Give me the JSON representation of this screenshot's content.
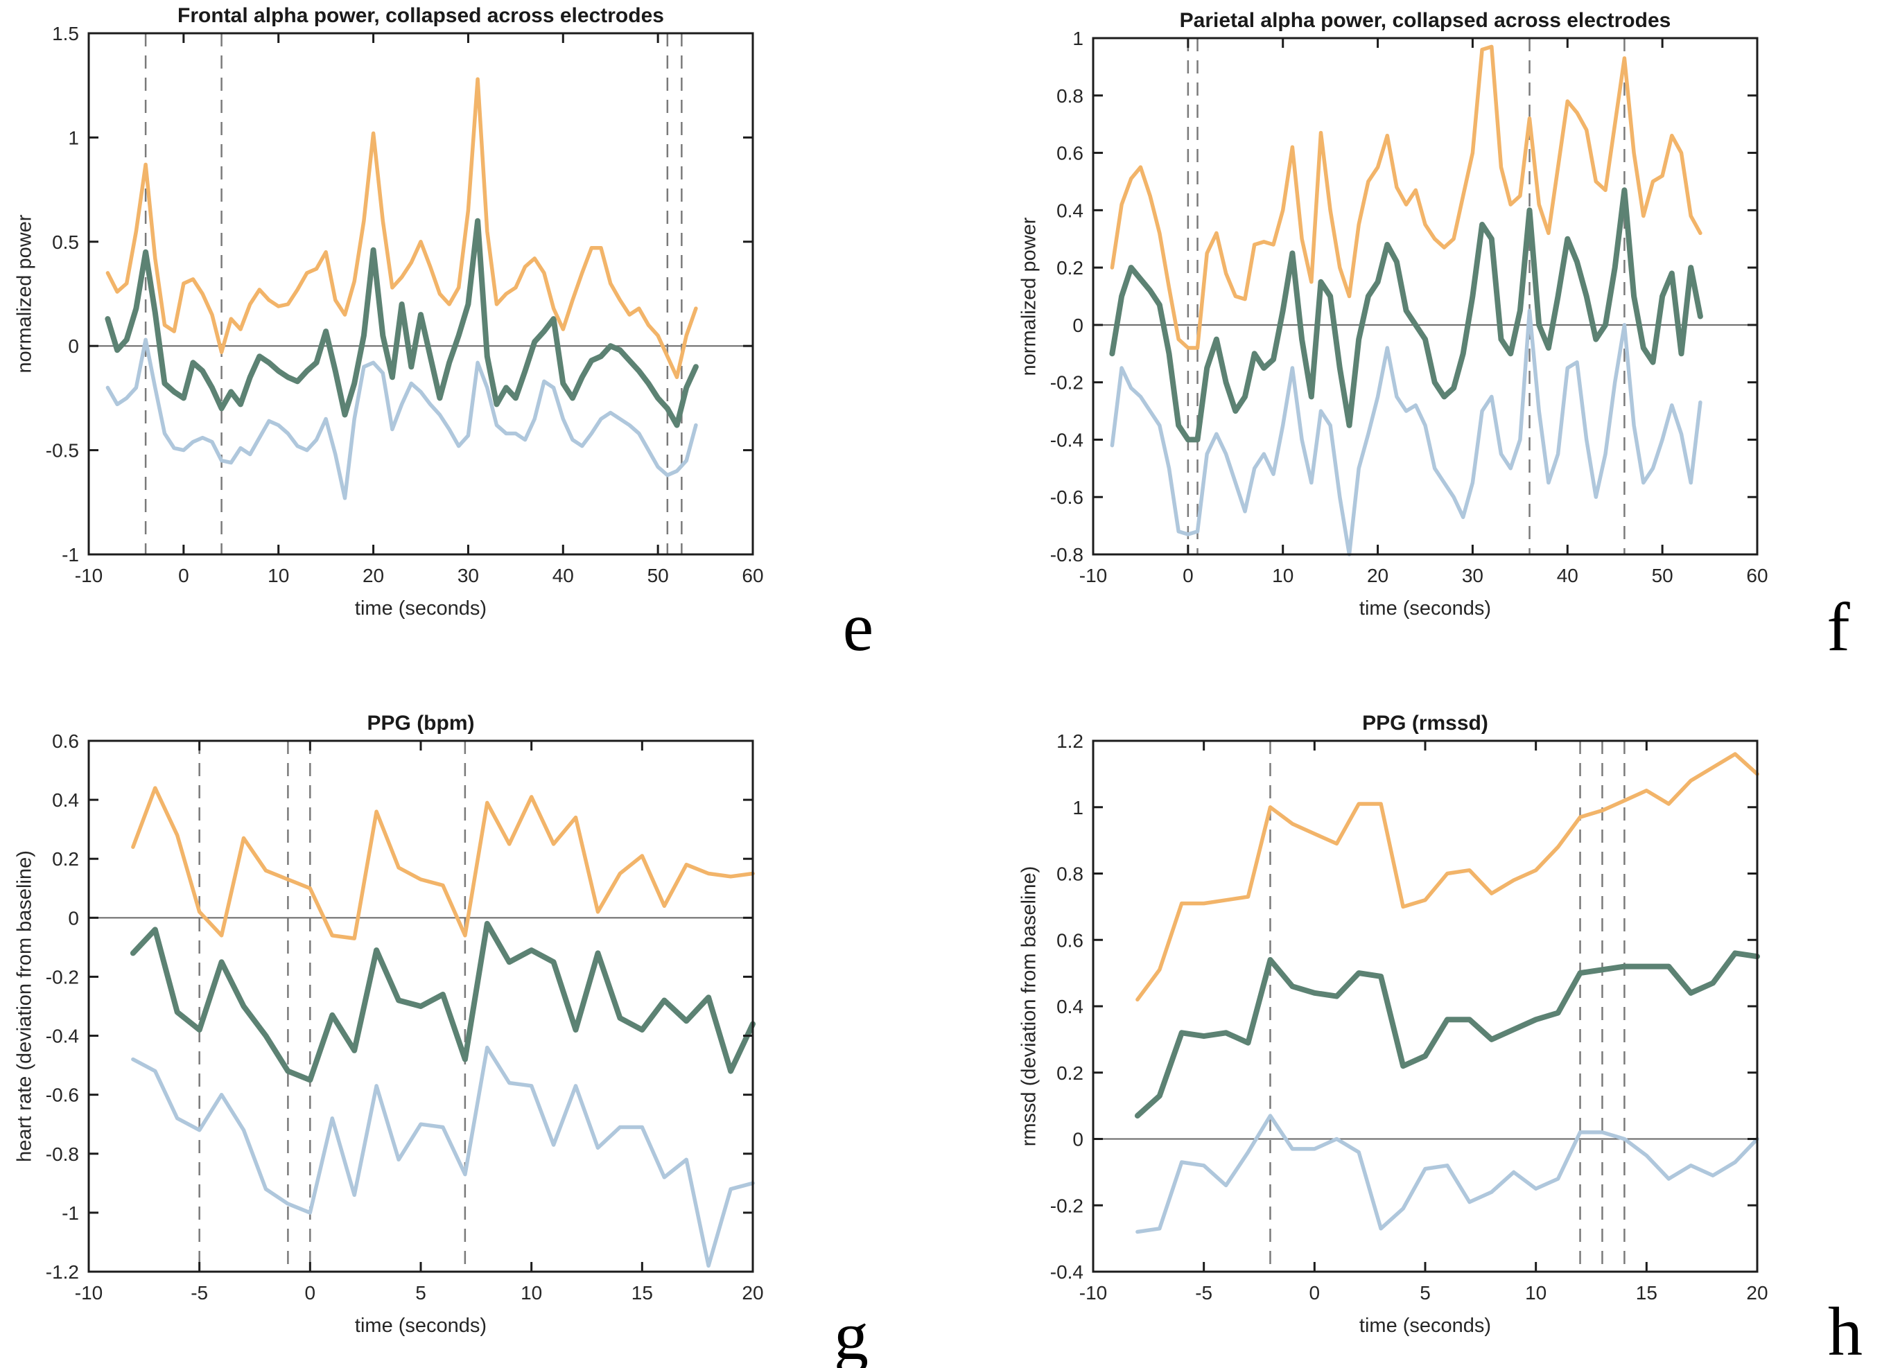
{
  "colors": {
    "orange": "#F2B469",
    "green": "#5C8273",
    "blue": "#AFC7DC",
    "dashed_line": "#7a7a7a",
    "zero_line": "#666666",
    "axis": "#1c1c1c",
    "text": "#262626"
  },
  "chart_data": [
    {
      "type": "line",
      "panel_letter": "e",
      "title": "Frontal alpha power, collapsed across electrodes",
      "xlabel": "time (seconds)",
      "ylabel": "normalized power",
      "xlim": [
        -10,
        60
      ],
      "ylim": [
        -1,
        1.5
      ],
      "xticks": [
        -10,
        0,
        10,
        20,
        30,
        40,
        50,
        60
      ],
      "xtick_labels": [
        "-10",
        "0",
        "10",
        "20",
        "30",
        "40",
        "50",
        "60"
      ],
      "yticks": [
        -1,
        -0.5,
        0,
        0.5,
        1,
        1.5
      ],
      "ytick_labels": [
        "-1",
        "-0.5",
        "0",
        "0.5",
        "1",
        "1.5"
      ],
      "dashed_vlines": [
        -4,
        4,
        51,
        52.5
      ],
      "zero_line": 0,
      "grid": false,
      "legend": null,
      "x": [
        -8,
        -7,
        -6,
        -5,
        -4,
        -3,
        -2,
        -1,
        0,
        1,
        2,
        3,
        4,
        5,
        6,
        7,
        8,
        9,
        10,
        11,
        12,
        13,
        14,
        15,
        16,
        17,
        18,
        19,
        20,
        21,
        22,
        23,
        24,
        25,
        26,
        27,
        28,
        29,
        30,
        31,
        32,
        33,
        34,
        35,
        36,
        37,
        38,
        39,
        40,
        41,
        42,
        43,
        44,
        45,
        46,
        47,
        48,
        49,
        50,
        51,
        52,
        53,
        54
      ],
      "series": [
        {
          "name": "orange",
          "values": [
            0.35,
            0.26,
            0.3,
            0.55,
            0.87,
            0.42,
            0.1,
            0.07,
            0.3,
            0.32,
            0.25,
            0.15,
            -0.03,
            0.13,
            0.08,
            0.2,
            0.27,
            0.22,
            0.19,
            0.2,
            0.27,
            0.35,
            0.37,
            0.45,
            0.22,
            0.15,
            0.31,
            0.6,
            1.02,
            0.6,
            0.28,
            0.33,
            0.4,
            0.5,
            0.38,
            0.25,
            0.2,
            0.28,
            0.65,
            1.28,
            0.55,
            0.2,
            0.25,
            0.28,
            0.38,
            0.42,
            0.35,
            0.18,
            0.08,
            0.22,
            0.35,
            0.47,
            0.47,
            0.3,
            0.22,
            0.15,
            0.18,
            0.1,
            0.05,
            -0.05,
            -0.15,
            0.05,
            0.18
          ]
        },
        {
          "name": "green",
          "values": [
            0.13,
            -0.02,
            0.03,
            0.18,
            0.45,
            0.16,
            -0.18,
            -0.22,
            -0.25,
            -0.08,
            -0.12,
            -0.2,
            -0.3,
            -0.22,
            -0.28,
            -0.15,
            -0.05,
            -0.08,
            -0.12,
            -0.15,
            -0.17,
            -0.12,
            -0.08,
            0.07,
            -0.12,
            -0.33,
            -0.18,
            0.05,
            0.46,
            0.05,
            -0.15,
            0.2,
            -0.1,
            0.15,
            -0.05,
            -0.25,
            -0.08,
            0.05,
            0.2,
            0.6,
            -0.05,
            -0.28,
            -0.2,
            -0.25,
            -0.12,
            0.02,
            0.07,
            0.13,
            -0.18,
            -0.25,
            -0.15,
            -0.07,
            -0.05,
            0.0,
            -0.02,
            -0.07,
            -0.12,
            -0.18,
            -0.25,
            -0.3,
            -0.38,
            -0.2,
            -0.1
          ]
        },
        {
          "name": "blue",
          "values": [
            -0.2,
            -0.28,
            -0.25,
            -0.2,
            0.03,
            -0.2,
            -0.42,
            -0.49,
            -0.5,
            -0.46,
            -0.44,
            -0.46,
            -0.55,
            -0.56,
            -0.49,
            -0.52,
            -0.44,
            -0.36,
            -0.38,
            -0.42,
            -0.48,
            -0.5,
            -0.45,
            -0.35,
            -0.52,
            -0.73,
            -0.35,
            -0.1,
            -0.08,
            -0.13,
            -0.4,
            -0.28,
            -0.18,
            -0.22,
            -0.28,
            -0.33,
            -0.4,
            -0.48,
            -0.43,
            -0.08,
            -0.2,
            -0.38,
            -0.42,
            -0.42,
            -0.45,
            -0.35,
            -0.17,
            -0.2,
            -0.35,
            -0.45,
            -0.48,
            -0.42,
            -0.35,
            -0.32,
            -0.35,
            -0.38,
            -0.42,
            -0.5,
            -0.58,
            -0.62,
            -0.6,
            -0.55,
            -0.38
          ]
        }
      ]
    },
    {
      "type": "line",
      "panel_letter": "f",
      "title": "Parietal alpha power, collapsed across electrodes",
      "xlabel": "time (seconds)",
      "ylabel": "normalized power",
      "xlim": [
        -10,
        60
      ],
      "ylim": [
        -0.8,
        1
      ],
      "xticks": [
        -10,
        0,
        10,
        20,
        30,
        40,
        50,
        60
      ],
      "xtick_labels": [
        "-10",
        "0",
        "10",
        "20",
        "30",
        "40",
        "50",
        "60"
      ],
      "yticks": [
        -0.8,
        -0.6,
        -0.4,
        -0.2,
        0,
        0.2,
        0.4,
        0.6,
        0.8,
        1
      ],
      "ytick_labels": [
        "-0.8",
        "-0.6",
        "-0.4",
        "-0.2",
        "0",
        "0.2",
        "0.4",
        "0.6",
        "0.8",
        "1"
      ],
      "dashed_vlines": [
        0,
        1,
        36,
        46
      ],
      "zero_line": 0,
      "grid": false,
      "legend": null,
      "x": [
        -8,
        -7,
        -6,
        -5,
        -4,
        -3,
        -2,
        -1,
        0,
        1,
        2,
        3,
        4,
        5,
        6,
        7,
        8,
        9,
        10,
        11,
        12,
        13,
        14,
        15,
        16,
        17,
        18,
        19,
        20,
        21,
        22,
        23,
        24,
        25,
        26,
        27,
        28,
        29,
        30,
        31,
        32,
        33,
        34,
        35,
        36,
        37,
        38,
        39,
        40,
        41,
        42,
        43,
        44,
        45,
        46,
        47,
        48,
        49,
        50,
        51,
        52,
        53,
        54
      ],
      "series": [
        {
          "name": "orange",
          "values": [
            0.2,
            0.42,
            0.51,
            0.55,
            0.45,
            0.32,
            0.13,
            -0.05,
            -0.08,
            -0.08,
            0.25,
            0.32,
            0.18,
            0.1,
            0.09,
            0.28,
            0.29,
            0.28,
            0.4,
            0.62,
            0.3,
            0.15,
            0.67,
            0.4,
            0.2,
            0.1,
            0.35,
            0.5,
            0.55,
            0.66,
            0.48,
            0.42,
            0.47,
            0.35,
            0.3,
            0.27,
            0.3,
            0.45,
            0.6,
            0.96,
            0.97,
            0.55,
            0.42,
            0.45,
            0.72,
            0.42,
            0.32,
            0.55,
            0.78,
            0.74,
            0.68,
            0.5,
            0.47,
            0.7,
            0.93,
            0.6,
            0.38,
            0.5,
            0.52,
            0.66,
            0.6,
            0.38,
            0.32
          ]
        },
        {
          "name": "green",
          "values": [
            -0.1,
            0.1,
            0.2,
            0.16,
            0.12,
            0.07,
            -0.1,
            -0.35,
            -0.4,
            -0.4,
            -0.15,
            -0.05,
            -0.2,
            -0.3,
            -0.25,
            -0.1,
            -0.15,
            -0.12,
            0.05,
            0.25,
            -0.05,
            -0.25,
            0.15,
            0.1,
            -0.15,
            -0.35,
            -0.05,
            0.1,
            0.15,
            0.28,
            0.22,
            0.05,
            0.0,
            -0.05,
            -0.2,
            -0.25,
            -0.22,
            -0.1,
            0.1,
            0.35,
            0.3,
            -0.05,
            -0.1,
            0.05,
            0.4,
            0.0,
            -0.08,
            0.1,
            0.3,
            0.22,
            0.1,
            -0.05,
            0.0,
            0.2,
            0.47,
            0.1,
            -0.08,
            -0.13,
            0.1,
            0.18,
            -0.1,
            0.2,
            0.03
          ]
        },
        {
          "name": "blue",
          "values": [
            -0.42,
            -0.15,
            -0.22,
            -0.25,
            -0.3,
            -0.35,
            -0.5,
            -0.72,
            -0.73,
            -0.72,
            -0.45,
            -0.38,
            -0.45,
            -0.55,
            -0.65,
            -0.5,
            -0.45,
            -0.52,
            -0.35,
            -0.15,
            -0.4,
            -0.55,
            -0.3,
            -0.35,
            -0.6,
            -0.8,
            -0.5,
            -0.38,
            -0.25,
            -0.08,
            -0.25,
            -0.3,
            -0.28,
            -0.35,
            -0.5,
            -0.55,
            -0.6,
            -0.67,
            -0.55,
            -0.3,
            -0.25,
            -0.45,
            -0.5,
            -0.4,
            0.05,
            -0.3,
            -0.55,
            -0.45,
            -0.15,
            -0.13,
            -0.4,
            -0.6,
            -0.45,
            -0.2,
            0.0,
            -0.35,
            -0.55,
            -0.5,
            -0.4,
            -0.28,
            -0.38,
            -0.55,
            -0.27
          ]
        }
      ]
    },
    {
      "type": "line",
      "panel_letter": "g",
      "title": "PPG (bpm)",
      "xlabel": "time (seconds)",
      "ylabel": "heart rate (deviation from baseline)",
      "xlim": [
        -10,
        20
      ],
      "ylim": [
        -1.2,
        0.6
      ],
      "xticks": [
        -10,
        -5,
        0,
        5,
        10,
        15,
        20
      ],
      "xtick_labels": [
        "-10",
        "-5",
        "0",
        "5",
        "10",
        "15",
        "20"
      ],
      "yticks": [
        -1.2,
        -1,
        -0.8,
        -0.6,
        -0.4,
        -0.2,
        0,
        0.2,
        0.4,
        0.6
      ],
      "ytick_labels": [
        "-1.2",
        "-1",
        "-0.8",
        "-0.6",
        "-0.4",
        "-0.2",
        "0",
        "0.2",
        "0.4",
        "0.6"
      ],
      "dashed_vlines": [
        -5,
        -1,
        0,
        7
      ],
      "zero_line": 0,
      "grid": false,
      "legend": null,
      "x": [
        -8,
        -7,
        -6,
        -5,
        -4,
        -3,
        -2,
        -1,
        0,
        1,
        2,
        3,
        4,
        5,
        6,
        7,
        8,
        9,
        10,
        11,
        12,
        13,
        14,
        15,
        16,
        17,
        18,
        19,
        20
      ],
      "series": [
        {
          "name": "orange",
          "values": [
            0.24,
            0.44,
            0.28,
            0.02,
            -0.06,
            0.27,
            0.16,
            0.13,
            0.1,
            -0.06,
            -0.07,
            0.36,
            0.17,
            0.13,
            0.11,
            -0.06,
            0.39,
            0.25,
            0.41,
            0.25,
            0.34,
            0.02,
            0.15,
            0.21,
            0.04,
            0.18,
            0.15,
            0.14,
            0.15
          ]
        },
        {
          "name": "green",
          "values": [
            -0.12,
            -0.04,
            -0.32,
            -0.38,
            -0.15,
            -0.3,
            -0.4,
            -0.52,
            -0.55,
            -0.33,
            -0.45,
            -0.11,
            -0.28,
            -0.3,
            -0.26,
            -0.48,
            -0.02,
            -0.15,
            -0.11,
            -0.15,
            -0.38,
            -0.12,
            -0.34,
            -0.38,
            -0.28,
            -0.35,
            -0.27,
            -0.52,
            -0.36
          ]
        },
        {
          "name": "blue",
          "values": [
            -0.48,
            -0.52,
            -0.68,
            -0.72,
            -0.6,
            -0.72,
            -0.92,
            -0.97,
            -1.0,
            -0.68,
            -0.94,
            -0.57,
            -0.82,
            -0.7,
            -0.71,
            -0.87,
            -0.44,
            -0.56,
            -0.57,
            -0.77,
            -0.57,
            -0.78,
            -0.71,
            -0.71,
            -0.88,
            -0.82,
            -1.18,
            -0.92,
            -0.9
          ]
        }
      ]
    },
    {
      "type": "line",
      "panel_letter": "h",
      "title": "PPG (rmssd)",
      "xlabel": "time (seconds)",
      "ylabel": "rmssd (deviation from baseline)",
      "xlim": [
        -10,
        20
      ],
      "ylim": [
        -0.4,
        1.2
      ],
      "xticks": [
        -10,
        -5,
        0,
        5,
        10,
        15,
        20
      ],
      "xtick_labels": [
        "-10",
        "-5",
        "0",
        "5",
        "10",
        "15",
        "20"
      ],
      "yticks": [
        -0.4,
        -0.2,
        0,
        0.2,
        0.4,
        0.6,
        0.8,
        1,
        1.2
      ],
      "ytick_labels": [
        "-0.4",
        "-0.2",
        "0",
        "0.2",
        "0.4",
        "0.6",
        "0.8",
        "1",
        "1.2"
      ],
      "dashed_vlines": [
        -2,
        12,
        13,
        14
      ],
      "zero_line": 0,
      "grid": false,
      "legend": null,
      "x": [
        -8,
        -7,
        -6,
        -5,
        -4,
        -3,
        -2,
        -1,
        0,
        1,
        2,
        3,
        4,
        5,
        6,
        7,
        8,
        9,
        10,
        11,
        12,
        13,
        14,
        15,
        16,
        17,
        18,
        19,
        20
      ],
      "series": [
        {
          "name": "orange",
          "values": [
            0.42,
            0.51,
            0.71,
            0.71,
            0.72,
            0.73,
            1.0,
            0.95,
            0.92,
            0.89,
            1.01,
            1.01,
            0.7,
            0.72,
            0.8,
            0.81,
            0.74,
            0.78,
            0.81,
            0.88,
            0.97,
            0.99,
            1.02,
            1.05,
            1.01,
            1.08,
            1.12,
            1.16,
            1.1
          ]
        },
        {
          "name": "green",
          "values": [
            0.07,
            0.13,
            0.32,
            0.31,
            0.32,
            0.29,
            0.54,
            0.46,
            0.44,
            0.43,
            0.5,
            0.49,
            0.22,
            0.25,
            0.36,
            0.36,
            0.3,
            0.33,
            0.36,
            0.38,
            0.5,
            0.51,
            0.52,
            0.52,
            0.52,
            0.44,
            0.47,
            0.56,
            0.55
          ]
        },
        {
          "name": "blue",
          "values": [
            -0.28,
            -0.27,
            -0.07,
            -0.08,
            -0.14,
            -0.04,
            0.07,
            -0.03,
            -0.03,
            0.0,
            -0.04,
            -0.27,
            -0.21,
            -0.09,
            -0.08,
            -0.19,
            -0.16,
            -0.1,
            -0.15,
            -0.12,
            0.02,
            0.02,
            0.0,
            -0.05,
            -0.12,
            -0.08,
            -0.11,
            -0.07,
            0.0
          ]
        }
      ]
    }
  ]
}
